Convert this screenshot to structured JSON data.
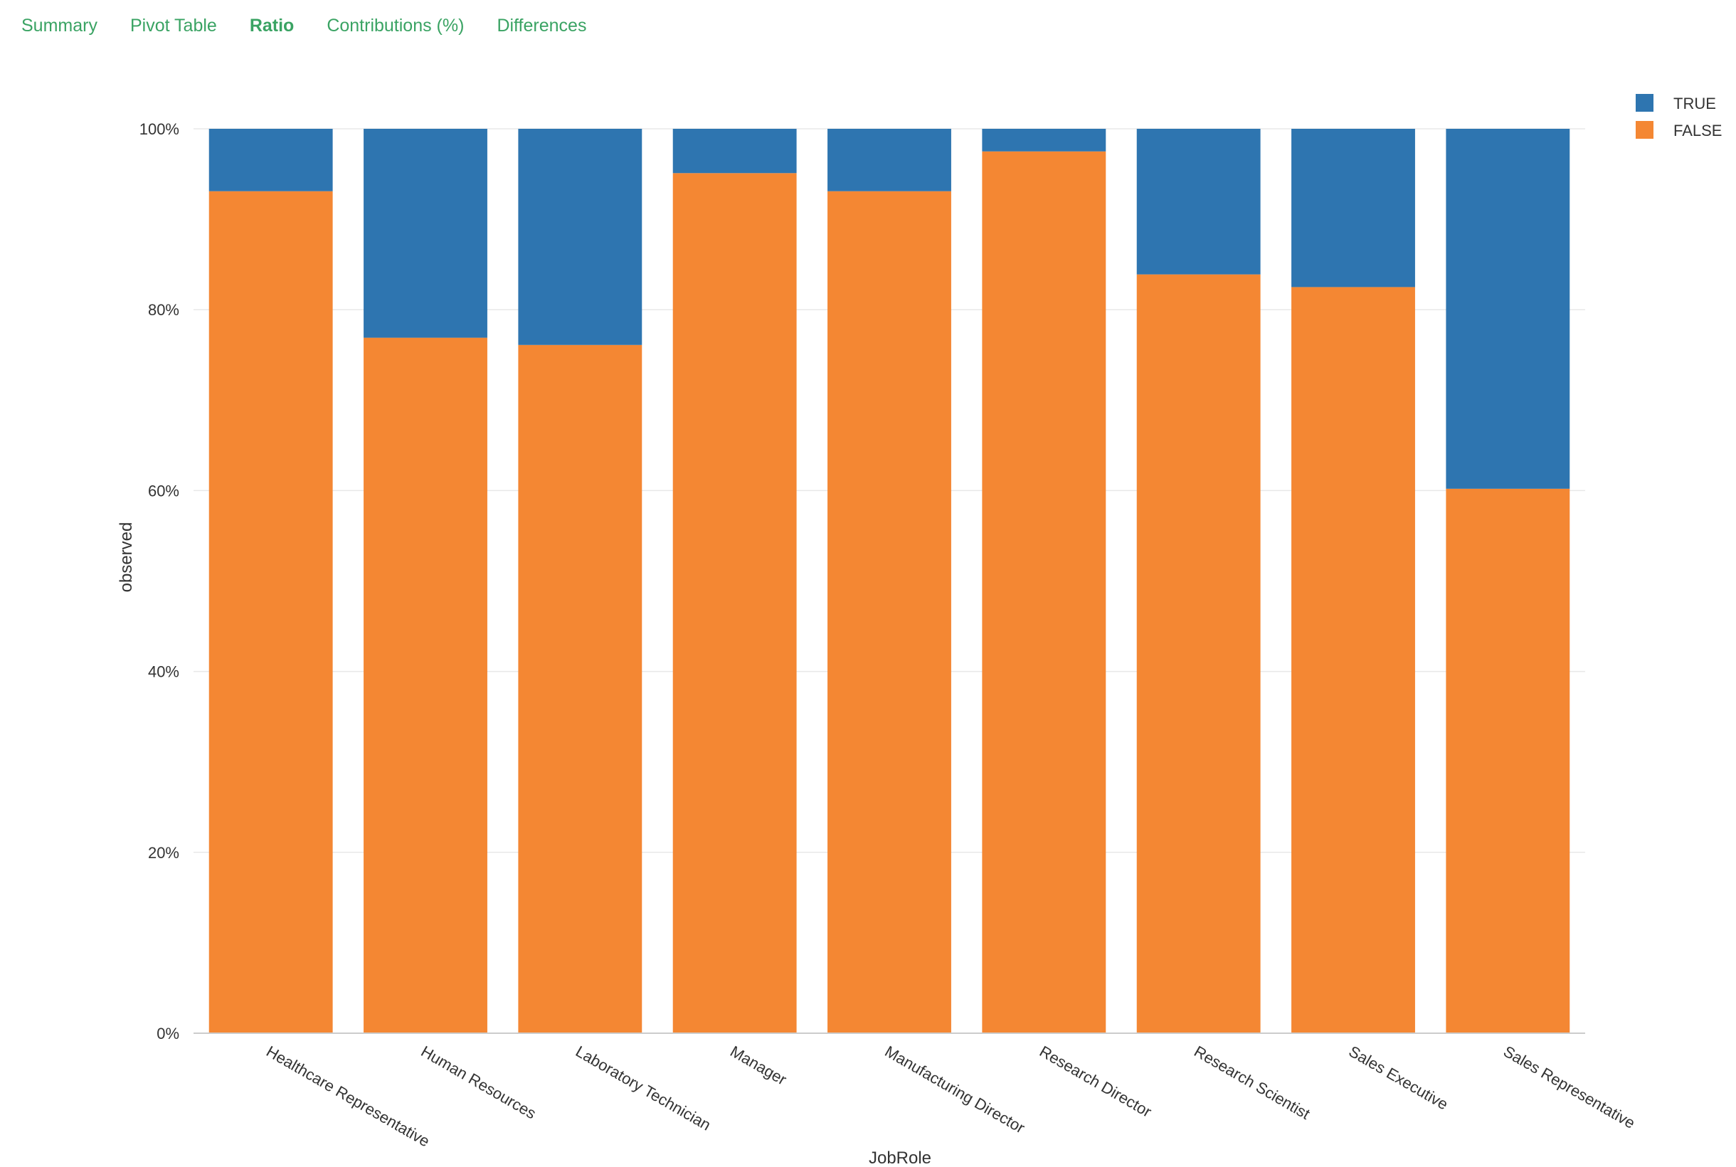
{
  "tabs": [
    {
      "label": "Summary",
      "active": false
    },
    {
      "label": "Pivot Table",
      "active": false
    },
    {
      "label": "Ratio",
      "active": true
    },
    {
      "label": "Contributions (%)",
      "active": false
    },
    {
      "label": "Differences",
      "active": false
    }
  ],
  "colors": {
    "tab_text": "#3aa363",
    "true": "#2e75b0",
    "false": "#f48733",
    "grid": "#e8e8e8",
    "axis": "#cccccc"
  },
  "chart_data": {
    "type": "bar",
    "stacked": true,
    "normalized": true,
    "xlabel": "JobRole",
    "ylabel": "observed",
    "ylim": [
      0,
      100
    ],
    "y_ticks": [
      "0%",
      "20%",
      "40%",
      "60%",
      "80%",
      "100%"
    ],
    "y_tick_values": [
      0,
      20,
      40,
      60,
      80,
      100
    ],
    "categories": [
      "Healthcare Representative",
      "Human Resources",
      "Laboratory Technician",
      "Manager",
      "Manufacturing Director",
      "Research Director",
      "Research Scientist",
      "Sales Executive",
      "Sales Representative"
    ],
    "series": [
      {
        "name": "FALSE",
        "values": [
          93.1,
          76.9,
          76.1,
          95.1,
          93.1,
          97.5,
          83.9,
          82.5,
          60.2
        ]
      },
      {
        "name": "TRUE",
        "values": [
          6.9,
          23.1,
          23.9,
          4.9,
          6.9,
          2.5,
          16.1,
          17.5,
          39.8
        ]
      }
    ],
    "legend": {
      "position": "top-right",
      "order": [
        "TRUE",
        "FALSE"
      ]
    },
    "grid": true
  }
}
